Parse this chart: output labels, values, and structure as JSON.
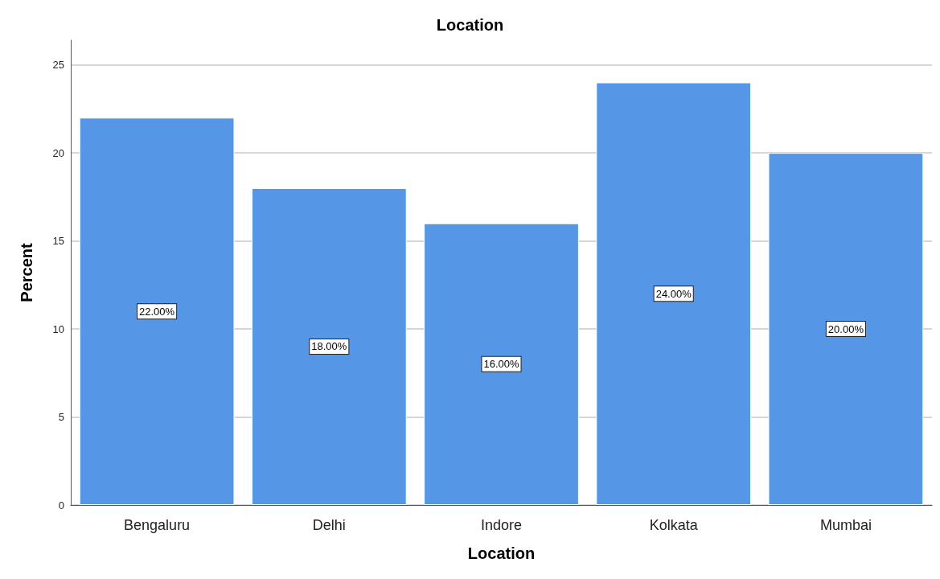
{
  "chart_data": {
    "type": "bar",
    "title": "Location",
    "xlabel": "Location",
    "ylabel": "Percent",
    "categories": [
      "Bengaluru",
      "Delhi",
      "Indore",
      "Kolkata",
      "Mumbai"
    ],
    "values": [
      22,
      18,
      16,
      24,
      20
    ],
    "value_labels": [
      "22.00%",
      "18.00%",
      "16.00%",
      "24.00%",
      "20.00%"
    ],
    "color": "#5596e6",
    "ylim": [
      0,
      26.4
    ],
    "yticks": [
      0,
      5,
      10,
      15,
      20,
      25
    ],
    "grid": "y"
  }
}
